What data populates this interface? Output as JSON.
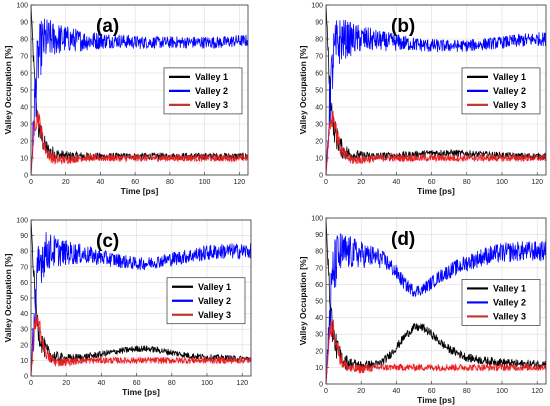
{
  "chart_data": [
    {
      "type": "line",
      "panel_label": "(a)",
      "xlabel": "Time [ps]",
      "ylabel": "Valley Occupation [%]",
      "xlim": [
        0,
        125
      ],
      "ylim": [
        0,
        100
      ],
      "xticks": [
        0,
        20,
        40,
        60,
        80,
        100,
        120
      ],
      "yticks": [
        0,
        10,
        20,
        30,
        40,
        50,
        60,
        70,
        80,
        90,
        100
      ],
      "grid": true,
      "legend_position": "center-right",
      "series": [
        {
          "name": "Valley 1",
          "color": "#000000",
          "x": [
            0,
            2,
            4,
            6,
            8,
            10,
            14,
            20,
            30,
            40,
            50,
            60,
            70,
            80,
            90,
            100,
            110,
            120,
            125
          ],
          "y": [
            100,
            55,
            30,
            22,
            17,
            14,
            12,
            11,
            11,
            11,
            11,
            11,
            11,
            11,
            11,
            11,
            11,
            11,
            11
          ],
          "noise": [
            0,
            8,
            8,
            7,
            6,
            5,
            4,
            3,
            2.5,
            2,
            2,
            2,
            2,
            2,
            2,
            2,
            2,
            2,
            2
          ]
        },
        {
          "name": "Valley 2",
          "color": "#0000ff",
          "x": [
            0,
            2,
            4,
            6,
            8,
            10,
            14,
            20,
            30,
            40,
            50,
            60,
            70,
            80,
            90,
            100,
            110,
            120,
            125
          ],
          "y": [
            0,
            40,
            68,
            76,
            79,
            80,
            80,
            80,
            79,
            79,
            79,
            78,
            78,
            78,
            78,
            78,
            78,
            79,
            79
          ],
          "noise": [
            0,
            18,
            18,
            16,
            14,
            12,
            10,
            8,
            6,
            5,
            4,
            4,
            3.5,
            3.5,
            3.5,
            3.5,
            3.5,
            3.5,
            3.5
          ]
        },
        {
          "name": "Valley 3",
          "color": "#c0392b",
          "x": [
            0,
            2,
            4,
            6,
            8,
            10,
            14,
            20,
            30,
            40,
            50,
            60,
            70,
            80,
            90,
            100,
            110,
            120,
            125
          ],
          "y": [
            0,
            30,
            35,
            25,
            16,
            12,
            9,
            9,
            10,
            10,
            10,
            10,
            10,
            10,
            10,
            10,
            10,
            10,
            10
          ],
          "noise": [
            0,
            6,
            6,
            5,
            4,
            3.5,
            3,
            2.5,
            2,
            2,
            2,
            2,
            2,
            2,
            2,
            2,
            2,
            2,
            2
          ]
        }
      ]
    },
    {
      "type": "line",
      "panel_label": "(b)",
      "xlabel": "Time [ps]",
      "ylabel": "Valley Occupation [%]",
      "xlim": [
        0,
        125
      ],
      "ylim": [
        0,
        100
      ],
      "xticks": [
        0,
        20,
        40,
        60,
        80,
        100,
        120
      ],
      "yticks": [
        0,
        10,
        20,
        30,
        40,
        50,
        60,
        70,
        80,
        90,
        100
      ],
      "grid": true,
      "legend_position": "center-right",
      "series": [
        {
          "name": "Valley 1",
          "color": "#000000",
          "x": [
            0,
            2,
            4,
            6,
            8,
            10,
            14,
            20,
            30,
            40,
            50,
            60,
            70,
            80,
            90,
            100,
            110,
            120,
            125
          ],
          "y": [
            100,
            55,
            30,
            22,
            17,
            14,
            12,
            11,
            11,
            11.5,
            12,
            13,
            13,
            12.5,
            12,
            11.5,
            11,
            11,
            11
          ],
          "noise": [
            0,
            8,
            8,
            7,
            6,
            5,
            4,
            3,
            2.5,
            2,
            2,
            2,
            2,
            2,
            2,
            2,
            2,
            2,
            2
          ]
        },
        {
          "name": "Valley 2",
          "color": "#0000ff",
          "x": [
            0,
            2,
            4,
            6,
            8,
            10,
            14,
            20,
            30,
            40,
            50,
            60,
            70,
            80,
            90,
            100,
            110,
            120,
            125
          ],
          "y": [
            0,
            40,
            68,
            76,
            79,
            80,
            80,
            80,
            79,
            78,
            77,
            76,
            76,
            76,
            77,
            78,
            79,
            80,
            80
          ],
          "noise": [
            0,
            18,
            18,
            16,
            14,
            12,
            10,
            8,
            6,
            5,
            4,
            4,
            3.5,
            3.5,
            3.5,
            3.5,
            4,
            4,
            4
          ]
        },
        {
          "name": "Valley 3",
          "color": "#c0392b",
          "x": [
            0,
            2,
            4,
            6,
            8,
            10,
            14,
            20,
            30,
            40,
            50,
            60,
            70,
            80,
            90,
            100,
            110,
            120,
            125
          ],
          "y": [
            0,
            30,
            35,
            25,
            16,
            12,
            9,
            9,
            10,
            10,
            10,
            10,
            10,
            10,
            10,
            10,
            10,
            10,
            10
          ],
          "noise": [
            0,
            6,
            6,
            5,
            4,
            3.5,
            3,
            2.5,
            2,
            2,
            2,
            2,
            2,
            2,
            2,
            2,
            2,
            2,
            2
          ]
        }
      ]
    },
    {
      "type": "line",
      "panel_label": "(c)",
      "xlabel": "Time [ps]",
      "ylabel": "Valley Occupation [%]",
      "xlim": [
        0,
        125
      ],
      "ylim": [
        0,
        100
      ],
      "xticks": [
        0,
        20,
        40,
        60,
        80,
        100,
        120
      ],
      "yticks": [
        0,
        10,
        20,
        30,
        40,
        50,
        60,
        70,
        80,
        90,
        100
      ],
      "grid": true,
      "legend_position": "center-right",
      "series": [
        {
          "name": "Valley 1",
          "color": "#000000",
          "x": [
            0,
            2,
            4,
            6,
            8,
            10,
            14,
            20,
            30,
            40,
            50,
            60,
            65,
            70,
            80,
            90,
            100,
            110,
            120,
            125
          ],
          "y": [
            100,
            55,
            30,
            22,
            17,
            14,
            12,
            11,
            12,
            14,
            16,
            17.5,
            17.5,
            17,
            15,
            13,
            12,
            11.5,
            11,
            11
          ],
          "noise": [
            0,
            8,
            8,
            7,
            6,
            5,
            4,
            3,
            2.5,
            2,
            2,
            2,
            2,
            2,
            2,
            2,
            2,
            2,
            2,
            2
          ]
        },
        {
          "name": "Valley 2",
          "color": "#0000ff",
          "x": [
            0,
            2,
            4,
            6,
            8,
            10,
            14,
            20,
            30,
            40,
            50,
            60,
            65,
            70,
            80,
            90,
            100,
            110,
            120,
            125
          ],
          "y": [
            0,
            40,
            66,
            76,
            79,
            80,
            80,
            79,
            78,
            76,
            74,
            72,
            72,
            73,
            75,
            77,
            79,
            80,
            80,
            80
          ],
          "noise": [
            0,
            18,
            18,
            16,
            14,
            12,
            10,
            8,
            6,
            5,
            4.5,
            4,
            4,
            4,
            4.5,
            4.5,
            5,
            5,
            5,
            5
          ]
        },
        {
          "name": "Valley 3",
          "color": "#c0392b",
          "x": [
            0,
            2,
            4,
            6,
            8,
            10,
            14,
            20,
            30,
            40,
            50,
            60,
            65,
            70,
            80,
            90,
            100,
            110,
            120,
            125
          ],
          "y": [
            0,
            30,
            35,
            25,
            16,
            12,
            9,
            9,
            10,
            10,
            10,
            10,
            10,
            10,
            10,
            10,
            10,
            10,
            10,
            10
          ],
          "noise": [
            0,
            6,
            6,
            5,
            4,
            3.5,
            3,
            2.5,
            2,
            2,
            2,
            2,
            2,
            2,
            2,
            2,
            2,
            2,
            2,
            2
          ]
        }
      ]
    },
    {
      "type": "line",
      "panel_label": "(d)",
      "xlabel": "Time [ps]",
      "ylabel": "Valley Occupation [%]",
      "xlim": [
        0,
        125
      ],
      "ylim": [
        0,
        100
      ],
      "xticks": [
        0,
        20,
        40,
        60,
        80,
        100,
        120
      ],
      "yticks": [
        0,
        10,
        20,
        30,
        40,
        50,
        60,
        70,
        80,
        90,
        100
      ],
      "grid": true,
      "legend_position": "center-right",
      "series": [
        {
          "name": "Valley 1",
          "color": "#000000",
          "x": [
            0,
            2,
            4,
            6,
            8,
            10,
            14,
            20,
            30,
            35,
            40,
            45,
            50,
            55,
            60,
            65,
            70,
            80,
            90,
            100,
            110,
            120,
            125
          ],
          "y": [
            100,
            55,
            30,
            22,
            17,
            14,
            12,
            11,
            12,
            16,
            22,
            29,
            34,
            34,
            30,
            25,
            21,
            16,
            14,
            13,
            12,
            12,
            12
          ],
          "noise": [
            0,
            8,
            8,
            7,
            6,
            5,
            4,
            3,
            2.5,
            2.5,
            2.5,
            2.5,
            2.5,
            2.5,
            2.5,
            2.5,
            2.5,
            2.5,
            2.5,
            2.5,
            2.5,
            2.5,
            2.5
          ]
        },
        {
          "name": "Valley 2",
          "color": "#0000ff",
          "x": [
            0,
            2,
            4,
            6,
            8,
            10,
            14,
            20,
            30,
            35,
            40,
            45,
            50,
            55,
            60,
            65,
            70,
            80,
            90,
            100,
            110,
            120,
            125
          ],
          "y": [
            0,
            40,
            66,
            75,
            78,
            79,
            79,
            78,
            76,
            73,
            67,
            60,
            56,
            57,
            61,
            65,
            68,
            73,
            77,
            79,
            80,
            80,
            80
          ],
          "noise": [
            0,
            18,
            18,
            16,
            14,
            12,
            10,
            8,
            6,
            5,
            4.5,
            4,
            3.5,
            3.5,
            4,
            4,
            4.5,
            5,
            5.5,
            6,
            6,
            6,
            6
          ]
        },
        {
          "name": "Valley 3",
          "color": "#c0392b",
          "x": [
            0,
            2,
            4,
            6,
            8,
            10,
            14,
            20,
            30,
            35,
            40,
            45,
            50,
            55,
            60,
            65,
            70,
            80,
            90,
            100,
            110,
            120,
            125
          ],
          "y": [
            0,
            30,
            35,
            25,
            16,
            12,
            9,
            9,
            10,
            10,
            10,
            10,
            10,
            10,
            10,
            10,
            10,
            10,
            10,
            10,
            10,
            10,
            10
          ],
          "noise": [
            0,
            6,
            6,
            5,
            4,
            3.5,
            3,
            2.5,
            2,
            2,
            2,
            2,
            2,
            2,
            2,
            2,
            2,
            2,
            2,
            2,
            2,
            2,
            2
          ]
        }
      ]
    }
  ]
}
